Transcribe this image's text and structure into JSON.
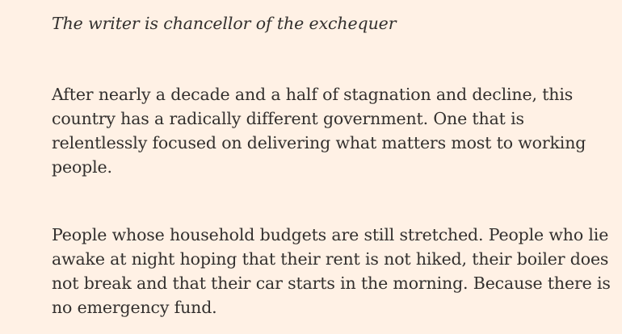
{
  "article": {
    "byline": "The writer is chancellor of the exchequer",
    "paragraphs": [
      {
        "lines": [
          "After nearly a decade and a half of stagnation and decline, this",
          "country has a radically different government. One that is",
          "relentlessly focused on delivering what matters most to working",
          "people."
        ]
      },
      {
        "lines": [
          "People whose household budgets are still stretched. People who lie",
          "awake at night hoping that their rent is not hiked, their boiler does",
          "not break and that their car starts in the morning. Because there is",
          "no emergency fund."
        ]
      }
    ]
  }
}
